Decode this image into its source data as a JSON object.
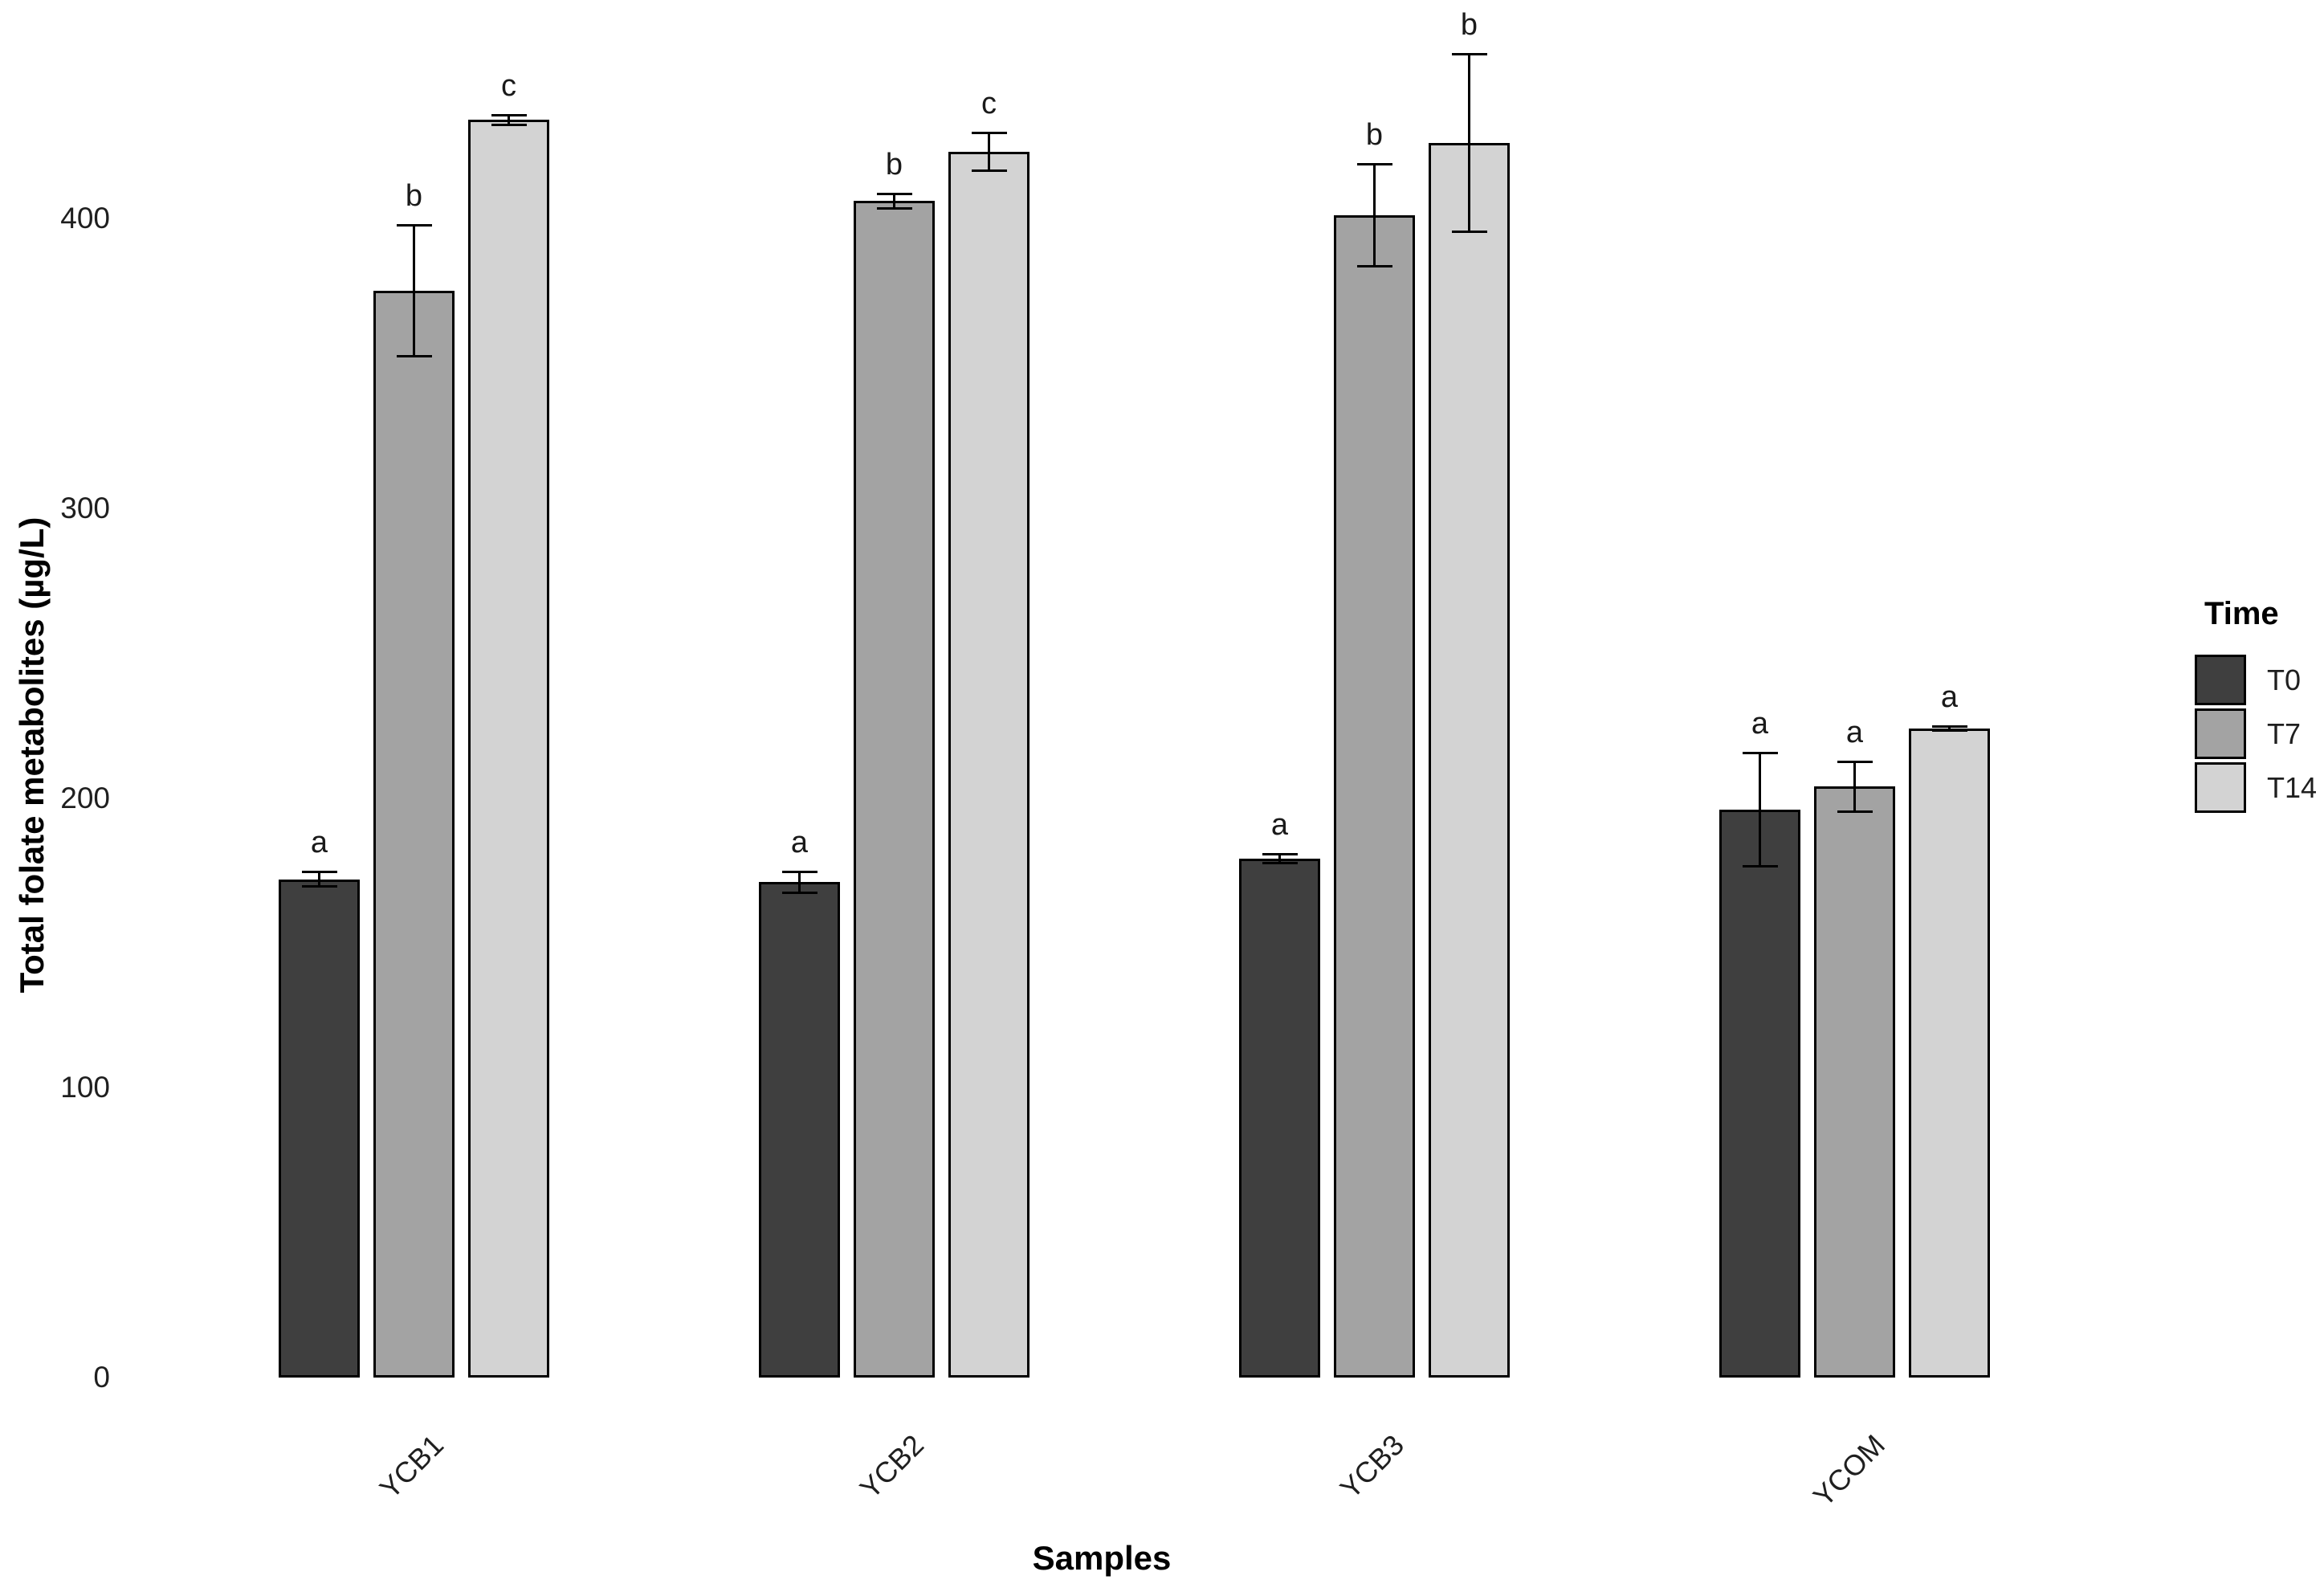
{
  "figure": {
    "background": "#ffffff",
    "text_color": "#1f1f1f",
    "bar_border_color": "#000000",
    "y_axis": {
      "title": "Total folate metabolites (µg/L)",
      "ticks": [
        "0",
        "100",
        "200",
        "300",
        "400"
      ],
      "tick_values": [
        0,
        100,
        200,
        300,
        400
      ]
    },
    "x_axis": {
      "title": "Samples",
      "categories": [
        "YCB1",
        "YCB2",
        "YCB3",
        "YCOM"
      ]
    },
    "legend": {
      "title": "Time",
      "entries": [
        {
          "label": "T0",
          "color": "#3f3f3f"
        },
        {
          "label": "T7",
          "color": "#a3a3a3"
        },
        {
          "label": "T14",
          "color": "#d3d3d3"
        }
      ]
    }
  },
  "chart_data": {
    "type": "bar",
    "title": "",
    "xlabel": "Samples",
    "ylabel": "Total folate metabolites (µg/L)",
    "ylim": [
      0,
      470
    ],
    "grid": false,
    "legend_position": "right",
    "legend_title": "Time",
    "error_bars": true,
    "categories": [
      "YCB1",
      "YCB2",
      "YCB3",
      "YCOM"
    ],
    "series": [
      {
        "name": "T0",
        "color": "#3f3f3f",
        "values": [
          172,
          171,
          179,
          196
        ],
        "errors": [
          3,
          4,
          2,
          20
        ],
        "sig_letters": [
          "a",
          "a",
          "a",
          "a"
        ]
      },
      {
        "name": "T7",
        "color": "#a3a3a3",
        "values": [
          375,
          406,
          401,
          204
        ],
        "errors": [
          23,
          3,
          18,
          9
        ],
        "sig_letters": [
          "b",
          "b",
          "b",
          "a"
        ]
      },
      {
        "name": "T14",
        "color": "#d3d3d3",
        "values": [
          434,
          423,
          426,
          224
        ],
        "errors": [
          2,
          7,
          31,
          1
        ],
        "sig_letters": [
          "c",
          "c",
          "b",
          "a"
        ]
      }
    ]
  }
}
